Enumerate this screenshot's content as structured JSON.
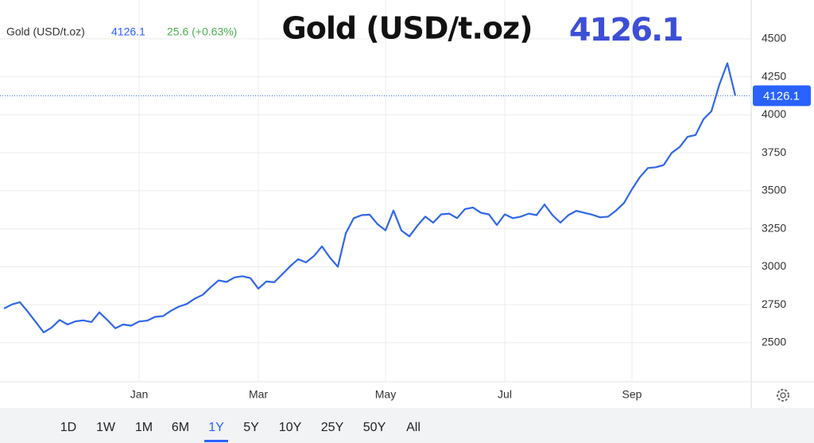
{
  "chart_data": {
    "type": "line",
    "title": "Gold (USD/t.oz)",
    "price_change": "25.6 (+0.63%)",
    "series": [
      {
        "name": "Gold (USD/t.oz)",
        "color": "#2f67e8",
        "values": [
          2725,
          2752,
          2767,
          2704,
          2636,
          2568,
          2600,
          2650,
          2620,
          2641,
          2647,
          2636,
          2700,
          2650,
          2595,
          2620,
          2612,
          2640,
          2645,
          2670,
          2675,
          2710,
          2738,
          2755,
          2790,
          2815,
          2865,
          2910,
          2900,
          2930,
          2938,
          2925,
          2856,
          2903,
          2898,
          2950,
          3003,
          3050,
          3029,
          3071,
          3134,
          3060,
          3000,
          3220,
          3320,
          3340,
          3343,
          3280,
          3240,
          3370,
          3238,
          3200,
          3270,
          3330,
          3290,
          3345,
          3350,
          3320,
          3380,
          3390,
          3355,
          3345,
          3275,
          3345,
          3320,
          3330,
          3350,
          3340,
          3410,
          3340,
          3290,
          3340,
          3368,
          3355,
          3343,
          3325,
          3330,
          3370,
          3420,
          3510,
          3590,
          3650,
          3655,
          3670,
          3750,
          3788,
          3856,
          3867,
          3971,
          4024,
          4200,
          4340,
          4126.1
        ]
      }
    ],
    "xlim": [
      0,
      92
    ],
    "xticks": [
      {
        "value": 17,
        "label": "Jan"
      },
      {
        "value": 32,
        "label": "Mar"
      },
      {
        "value": 48,
        "label": "May"
      },
      {
        "value": 63,
        "label": "Jul"
      },
      {
        "value": 79,
        "label": "Sep"
      }
    ],
    "ylim": [
      2243,
      4756
    ],
    "yticks": [
      2500,
      2750,
      3000,
      3250,
      3500,
      3750,
      4000,
      4250,
      4500
    ],
    "grid": true
  },
  "toolbar": {
    "ranges": [
      "1D",
      "1W",
      "1M",
      "6M",
      "1Y",
      "5Y",
      "10Y",
      "25Y",
      "50Y",
      "All"
    ],
    "selected": 4
  }
}
